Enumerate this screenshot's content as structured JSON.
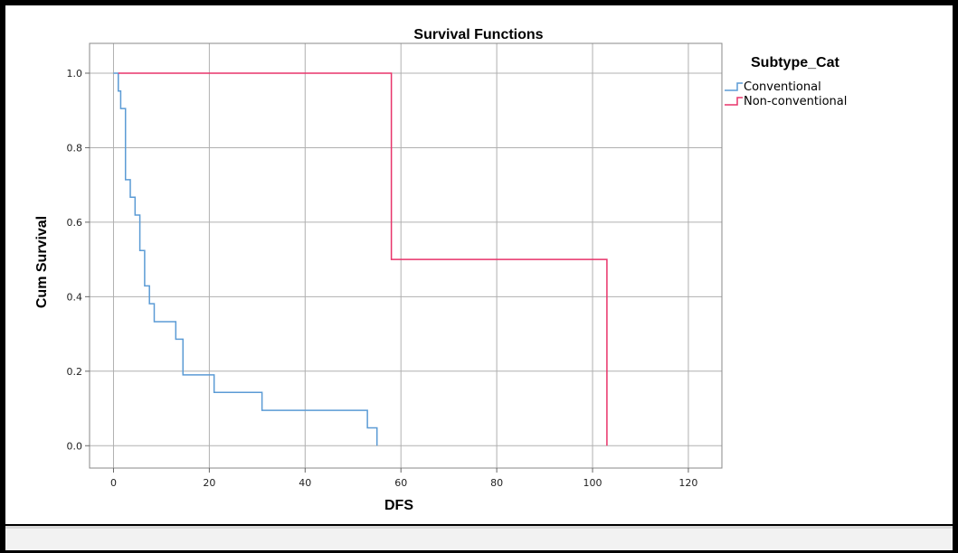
{
  "chart_data": {
    "type": "line",
    "subtype": "step",
    "title": "Survival Functions",
    "xlabel": "DFS",
    "ylabel": "Cum Survival",
    "xlim": [
      -5,
      127
    ],
    "ylim": [
      -0.06,
      1.08
    ],
    "xticks": [
      0,
      20,
      40,
      60,
      80,
      100,
      120
    ],
    "yticks": [
      0.0,
      0.2,
      0.4,
      0.6,
      0.8,
      1.0
    ],
    "xtick_labels": [
      "0",
      "20",
      "40",
      "60",
      "80",
      "100",
      "120"
    ],
    "ytick_labels": [
      "0.0",
      "0.2",
      "0.4",
      "0.6",
      "0.8",
      "1.0"
    ],
    "grid": true,
    "legend": {
      "title": "Subtype_Cat",
      "placement": "top-right outside"
    },
    "series": [
      {
        "name": "Conventional",
        "color": "#5b9bd5",
        "x": [
          0,
          1,
          1.5,
          2.5,
          3.5,
          4.5,
          5.5,
          6.5,
          7.5,
          8.5,
          13,
          14.5,
          21,
          31,
          53,
          55
        ],
        "y": [
          1.0,
          0.952,
          0.905,
          0.714,
          0.667,
          0.619,
          0.524,
          0.429,
          0.381,
          0.333,
          0.286,
          0.19,
          0.143,
          0.095,
          0.048,
          0.0
        ]
      },
      {
        "name": "Non-conventional",
        "color": "#e8336a",
        "x": [
          1,
          58,
          103
        ],
        "y": [
          1.0,
          0.5,
          0.0
        ]
      }
    ]
  }
}
